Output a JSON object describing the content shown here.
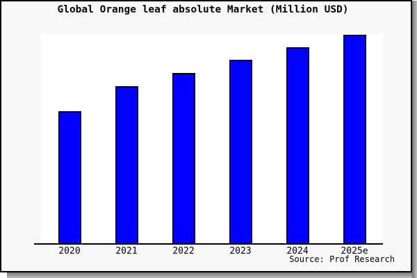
{
  "title": "Global Orange leaf absolute Market (Million USD)",
  "source_note": "Source: Prof Research",
  "colors": {
    "bar_fill": "#0000ff",
    "bar_border": "#000000",
    "figure_background": "#f8f8f8",
    "plot_background": "#ffffff",
    "frame_border": "#000000",
    "shadow": "#8a8a8a",
    "text": "#000000"
  },
  "chart_data": {
    "type": "bar",
    "title": "Global Orange leaf absolute Market (Million USD)",
    "categories": [
      "2020",
      "2021",
      "2022",
      "2023",
      "2024",
      "2025e"
    ],
    "values": [
      63.2,
      75.2,
      81.8,
      87.9,
      93.9,
      100.0
    ],
    "value_note": "relative bar heights (percent of tallest bar); chart shows no y-axis scale or value labels",
    "xlabel": "",
    "ylabel": "",
    "ylim": [
      0,
      100
    ],
    "grid": false,
    "legend": false,
    "y_axis_visible": false,
    "x_axis_visible": true,
    "annotations": [
      "Source: Prof Research"
    ]
  }
}
